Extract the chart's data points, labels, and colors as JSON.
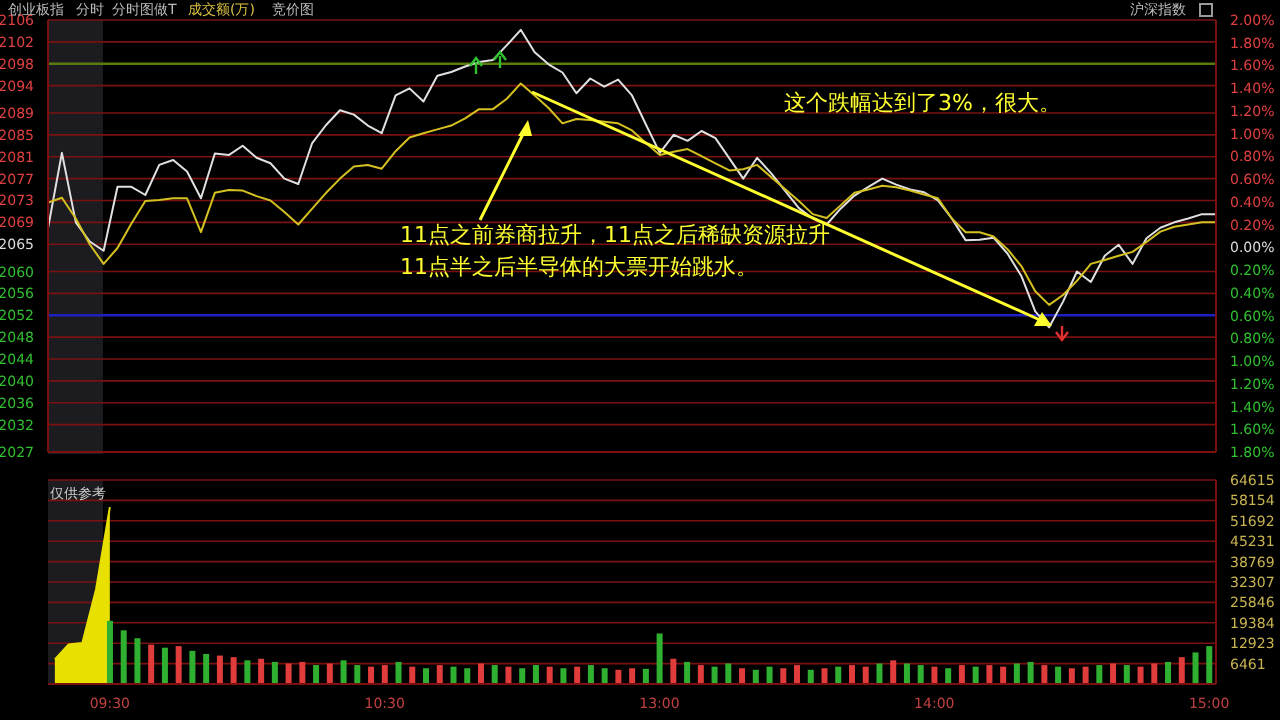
{
  "chart_data": [
    {
      "type": "line",
      "title": "创业板指",
      "annotations": [
        "分时",
        "分时图做T",
        "成交额(万)",
        "竞价图",
        "沪深指数",
        "11点之前券商拉升，11点之后稀缺资源拉升",
        "11点半之后半导体的大票开始跳水。",
        "这个跌幅达到了3%，很大。"
      ],
      "categories": [
        null,
        null,
        null,
        null,
        null,
        null,
        null,
        null,
        null,
        null,
        null,
        null,
        null,
        null,
        null,
        null,
        null,
        null,
        null,
        null,
        null,
        null,
        null,
        null,
        null,
        null,
        null,
        null,
        null,
        null,
        null,
        null,
        null,
        null,
        null,
        null,
        null,
        null,
        null,
        null,
        null,
        null,
        null,
        null,
        null,
        null,
        null,
        null,
        null,
        null,
        null,
        null,
        null,
        null,
        null,
        null,
        null,
        null,
        null,
        null,
        null,
        null,
        null,
        null,
        null,
        null,
        null,
        null,
        null,
        null,
        null,
        null,
        null,
        null,
        null,
        null,
        null,
        null,
        null,
        null,
        null,
        null,
        null,
        null,
        null
      ],
      "series": [
        {
          "color": "#e0e0e0",
          "values": [
            2067.9,
            2081.7,
            2069.0,
            2065.5,
            2063.8,
            2075.5,
            2075.5,
            2074.0,
            2079.5,
            2080.4,
            2078.3,
            2073.4,
            2081.6,
            2081.3,
            2083.0,
            2080.8,
            2079.8,
            2077.0,
            2076.0,
            2083.5,
            2086.8,
            2089.5,
            2088.7,
            2086.7,
            2085.3,
            2092.2,
            2093.5,
            2091.1,
            2095.8,
            2096.5,
            2097.5,
            2098.3,
            2098.7,
            2101.4,
            2104.2,
            2100.1,
            2097.9,
            2096.4,
            2092.6,
            2095.3,
            2093.8,
            2095.1,
            2092.2,
            2086.9,
            2081.7,
            2085.0,
            2083.9,
            2085.7,
            2084.4,
            2080.7,
            2077.0,
            2080.8,
            2078.0,
            2074.8,
            2071.6,
            2069.7,
            2068.6,
            2071.5,
            2073.9,
            2075.5,
            2077.0,
            2075.9,
            2075.0,
            2074.5,
            2073.0,
            2069.7,
            2065.7,
            2065.8,
            2066.2,
            2063.3,
            2059.2,
            2052.7,
            2049.8,
            2054.5,
            2060.0,
            2058.1,
            2062.9,
            2064.9,
            2061.4,
            2066.1,
            2068.0,
            2069.0,
            2069.7,
            2070.5,
            2070.5
          ]
        },
        {
          "color": "#d4c020",
          "values": [
            2072.6,
            2073.5,
            2069.7,
            2065.0,
            2061.4,
            2064.3,
            2068.8,
            2072.9,
            2073.1,
            2073.4,
            2073.4,
            2067.2,
            2074.4,
            2074.9,
            2074.8,
            2073.8,
            2073.0,
            2070.9,
            2068.6,
            2071.5,
            2074.4,
            2077.0,
            2079.2,
            2079.5,
            2078.8,
            2082.0,
            2084.5,
            2085.3,
            2086.0,
            2086.7,
            2088.0,
            2089.7,
            2089.7,
            2091.6,
            2094.4,
            2092.2,
            2089.9,
            2087.1,
            2087.9,
            2087.7,
            2087.4,
            2087.1,
            2085.8,
            2083.5,
            2081.3,
            2081.9,
            2082.4,
            2081.1,
            2079.8,
            2078.5,
            2078.7,
            2079.5,
            2077.3,
            2075.1,
            2072.9,
            2070.5,
            2069.8,
            2072.1,
            2074.4,
            2075.0,
            2075.7,
            2075.4,
            2074.8,
            2074.1,
            2073.4,
            2069.7,
            2067.2,
            2067.2,
            2066.4,
            2064.1,
            2061.0,
            2056.4,
            2053.9,
            2055.7,
            2058.3,
            2061.4,
            2062.1,
            2062.9,
            2063.6,
            2065.4,
            2067.3,
            2068.2,
            2068.6,
            2069.0,
            2069.0
          ]
        }
      ],
      "ylim": [
        2027,
        2106
      ],
      "yticks": [
        2106,
        2102,
        2098,
        2094,
        2089,
        2085,
        2081,
        2077,
        2073,
        2069,
        2065,
        2060,
        2056,
        2052,
        2048,
        2044,
        2040,
        2036,
        2032,
        2027
      ],
      "y2lim": [
        -1.8,
        2.0
      ],
      "y2ticks": [
        {
          "value": 2.0,
          "label": "2.00%"
        },
        {
          "value": 1.8,
          "label": "1.80%"
        },
        {
          "value": 1.6,
          "label": "1.60%"
        },
        {
          "value": 1.4,
          "label": "1.40%"
        },
        {
          "value": 1.2,
          "label": "1.20%"
        },
        {
          "value": 1.0,
          "label": "1.00%"
        },
        {
          "value": 0.8,
          "label": "0.80%"
        },
        {
          "value": 0.6,
          "label": "0.60%"
        },
        {
          "value": 0.4,
          "label": "0.40%"
        },
        {
          "value": 0.2,
          "label": "0.20%"
        },
        {
          "value": 0,
          "label": "0.00%"
        },
        {
          "value": -0.2,
          "label": "0.20%"
        },
        {
          "value": -0.4,
          "label": "0.40%"
        },
        {
          "value": -0.6,
          "label": "0.60%"
        },
        {
          "value": -0.8,
          "label": "0.80%"
        },
        {
          "value": -1.0,
          "label": "1.00%"
        },
        {
          "value": -1.2,
          "label": "1.20%"
        },
        {
          "value": -1.4,
          "label": "1.40%"
        },
        {
          "value": -1.6,
          "label": "1.60%"
        },
        {
          "value": -1.8,
          "label": "1.80%"
        }
      ],
      "ref_lines": [
        {
          "axis": "y",
          "value": 2098,
          "color": "#5a7a10"
        },
        {
          "axis": "y",
          "value": 2052,
          "color": "#2020c0"
        }
      ],
      "grid": "y"
    },
    {
      "type": "bar",
      "annotations": [
        "仅供参考"
      ],
      "categories": [
        null,
        null,
        null,
        null,
        "09:30",
        null,
        null,
        null,
        null,
        null,
        null,
        null,
        null,
        null,
        null,
        null,
        null,
        null,
        null,
        null,
        null,
        null,
        null,
        null,
        "10:30",
        null,
        null,
        null,
        null,
        null,
        null,
        null,
        null,
        null,
        null,
        null,
        null,
        null,
        null,
        null,
        null,
        null,
        null,
        null,
        "13:00",
        null,
        null,
        null,
        null,
        null,
        null,
        null,
        null,
        null,
        null,
        null,
        null,
        null,
        null,
        null,
        null,
        null,
        null,
        null,
        "14:00",
        null,
        null,
        null,
        null,
        null,
        null,
        null,
        null,
        null,
        null,
        null,
        null,
        null,
        null,
        null,
        null,
        null,
        null,
        null,
        "15:00"
      ],
      "series": [
        {
          "type": "area",
          "color": "#e8e000",
          "values": [
            7800,
            12500,
            13000,
            30000,
            56000,
            null,
            null,
            null,
            null,
            null,
            null,
            null,
            null,
            null,
            null,
            null,
            null,
            null,
            null,
            null,
            null,
            null,
            null,
            null,
            null,
            null,
            null,
            null,
            null,
            null,
            null,
            null,
            null,
            null,
            null,
            null,
            null,
            null,
            null,
            null,
            null,
            null,
            null,
            null,
            null,
            null,
            null,
            null,
            null,
            null,
            null,
            null,
            null,
            null,
            null,
            null,
            null,
            null,
            null,
            null,
            null,
            null,
            null,
            null,
            null,
            null,
            null,
            null,
            null,
            null,
            null,
            null,
            null,
            null,
            null,
            null,
            null,
            null,
            null,
            null,
            null,
            null,
            null,
            null,
            null
          ]
        },
        {
          "values": [
            null,
            null,
            null,
            null,
            20000,
            17000,
            14500,
            12500,
            11500,
            12000,
            10500,
            9500,
            9000,
            8500,
            7500,
            8000,
            7000,
            6500,
            7000,
            6000,
            6500,
            7500,
            6000,
            5500,
            6000,
            7000,
            5500,
            5000,
            6000,
            5500,
            5000,
            6500,
            6000,
            5500,
            5000,
            6000,
            5500,
            5000,
            5500,
            6000,
            5000,
            4500,
            5000,
            4800,
            16000,
            8000,
            7000,
            6000,
            5500,
            6500,
            5000,
            4500,
            5500,
            5000,
            6000,
            4500,
            5000,
            5500,
            6000,
            5500,
            6500,
            7500,
            6500,
            6000,
            5500,
            5000,
            6000,
            5500,
            6000,
            5500,
            6500,
            7000,
            6000,
            5500,
            5000,
            5500,
            6000,
            6500,
            6000,
            5500,
            6500,
            7000,
            8500,
            10000,
            12000
          ],
          "colors": [
            null,
            null,
            null,
            null,
            "#30b030",
            "#30b030",
            "#30b030",
            "#e03c3c",
            "#30b030",
            "#e03c3c",
            "#30b030",
            "#30b030",
            "#e03c3c",
            "#e03c3c",
            "#30b030",
            "#e03c3c",
            "#30b030",
            "#e03c3c",
            "#e03c3c",
            "#30b030",
            "#e03c3c",
            "#30b030",
            "#30b030",
            "#e03c3c",
            "#e03c3c",
            "#30b030",
            "#e03c3c",
            "#30b030",
            "#e03c3c",
            "#30b030",
            "#30b030",
            "#e03c3c",
            "#30b030",
            "#e03c3c",
            "#30b030",
            "#30b030",
            "#e03c3c",
            "#30b030",
            "#e03c3c",
            "#30b030",
            "#30b030",
            "#e03c3c",
            "#e03c3c",
            "#30b030",
            "#30b030",
            "#e03c3c",
            "#30b030",
            "#e03c3c",
            "#30b030",
            "#30b030",
            "#e03c3c",
            "#30b030",
            "#30b030",
            "#e03c3c",
            "#e03c3c",
            "#30b030",
            "#e03c3c",
            "#30b030",
            "#e03c3c",
            "#e03c3c",
            "#30b030",
            "#e03c3c",
            "#30b030",
            "#30b030",
            "#e03c3c",
            "#30b030",
            "#e03c3c",
            "#30b030",
            "#e03c3c",
            "#e03c3c",
            "#30b030",
            "#30b030",
            "#e03c3c",
            "#30b030",
            "#e03c3c",
            "#e03c3c",
            "#30b030",
            "#e03c3c",
            "#30b030",
            "#e03c3c",
            "#e03c3c",
            "#30b030",
            "#e03c3c",
            "#30b030",
            "#30b030"
          ]
        }
      ],
      "ylim": [
        0,
        64615
      ],
      "yticks": [
        6461,
        12923,
        19384,
        25846,
        32307,
        38769,
        45231,
        51692,
        58154,
        64615
      ],
      "grid": "y"
    }
  ]
}
